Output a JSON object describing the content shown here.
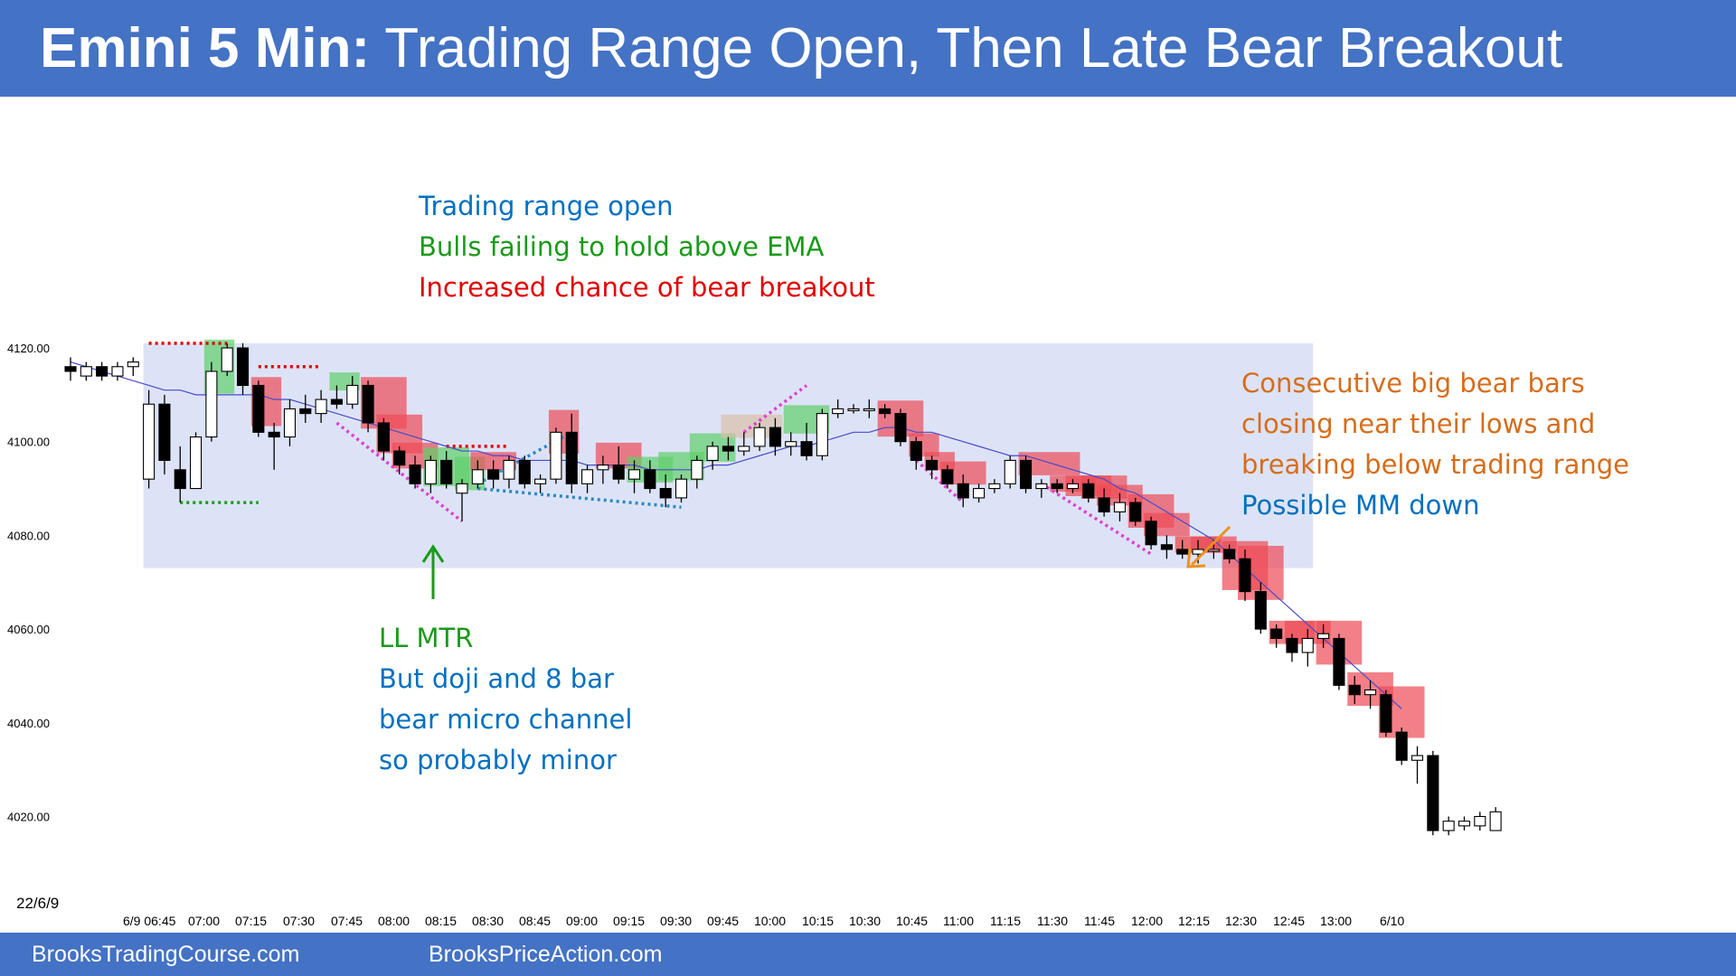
{
  "header": {
    "title_bold": "Emini 5 Min:",
    "title_rest": " Trading Range Open, Then Late Bear Breakout"
  },
  "footer": {
    "link1": "BrooksTradingCourse.com",
    "link2": "BrooksPriceAction.com"
  },
  "colors": {
    "header_bg": "#4472c4",
    "range_box": "#dde3f7",
    "bull_highlight": "#5fcf6a",
    "bear_highlight": "#ee4a55",
    "ema": "#4a4ac8",
    "annotation_blue": "#0070c0",
    "annotation_green": "#1a9a1a",
    "annotation_red": "#e00000",
    "annotation_orange": "#d66d1c"
  },
  "annotations": {
    "top_line1": "Trading range open",
    "top_line2": "Bulls failing to hold above EMA",
    "top_line3": "Increased chance of bear breakout",
    "right_line1": "Consecutive big bear bars",
    "right_line2": "closing near their lows and",
    "right_line3": "breaking below trading range",
    "right_line4": "Possible MM down",
    "bottom_line1": "LL MTR",
    "bottom_line2": "But doji and 8 bar",
    "bottom_line3": "bear micro channel",
    "bottom_line4": "so probably minor"
  },
  "chart_data": {
    "type": "candlestick",
    "date_label": "22/6/9",
    "y_ticks": [
      "4120.00",
      "4100.00",
      "4080.00",
      "4060.00",
      "4040.00",
      "4020.00"
    ],
    "x_ticks": [
      "6/9 06:45",
      "07:00",
      "07:15",
      "07:30",
      "07:45",
      "08:00",
      "08:15",
      "08:30",
      "08:45",
      "09:00",
      "09:15",
      "09:30",
      "09:45",
      "10:00",
      "10:15",
      "10:30",
      "10:45",
      "11:00",
      "11:15",
      "11:30",
      "11:45",
      "12:00",
      "12:15",
      "12:30",
      "12:45",
      "13:00",
      "6/10"
    ],
    "ylim": [
      4013,
      4136
    ],
    "candles": [
      {
        "o": 4116,
        "h": 4118,
        "l": 4113,
        "c": 4115
      },
      {
        "o": 4114,
        "h": 4117,
        "l": 4113,
        "c": 4116
      },
      {
        "o": 4116,
        "h": 4117,
        "l": 4113,
        "c": 4114
      },
      {
        "o": 4114,
        "h": 4117,
        "l": 4113,
        "c": 4116
      },
      {
        "o": 4116,
        "h": 4118,
        "l": 4114,
        "c": 4117
      },
      {
        "o": 4092,
        "h": 4111,
        "l": 4090,
        "c": 4108
      },
      {
        "o": 4108,
        "h": 4110,
        "l": 4093,
        "c": 4096
      },
      {
        "o": 4094,
        "h": 4099,
        "l": 4087,
        "c": 4090
      },
      {
        "o": 4090,
        "h": 4102,
        "l": 4090,
        "c": 4101
      },
      {
        "o": 4101,
        "h": 4117,
        "l": 4100,
        "c": 4115
      },
      {
        "o": 4115,
        "h": 4121,
        "l": 4114,
        "c": 4120
      },
      {
        "o": 4120,
        "h": 4121,
        "l": 4110,
        "c": 4112
      },
      {
        "o": 4112,
        "h": 4113,
        "l": 4101,
        "c": 4102
      },
      {
        "o": 4102,
        "h": 4104,
        "l": 4094,
        "c": 4101
      },
      {
        "o": 4101,
        "h": 4109,
        "l": 4099,
        "c": 4107
      },
      {
        "o": 4107,
        "h": 4110,
        "l": 4104,
        "c": 4106
      },
      {
        "o": 4106,
        "h": 4111,
        "l": 4104,
        "c": 4109
      },
      {
        "o": 4109,
        "h": 4112,
        "l": 4107,
        "c": 4108
      },
      {
        "o": 4108,
        "h": 4114,
        "l": 4107,
        "c": 4112
      },
      {
        "o": 4112,
        "h": 4113,
        "l": 4102,
        "c": 4104
      },
      {
        "o": 4104,
        "h": 4105,
        "l": 4096,
        "c": 4098
      },
      {
        "o": 4098,
        "h": 4099,
        "l": 4093,
        "c": 4095
      },
      {
        "o": 4095,
        "h": 4097,
        "l": 4090,
        "c": 4091
      },
      {
        "o": 4091,
        "h": 4097,
        "l": 4089,
        "c": 4096
      },
      {
        "o": 4096,
        "h": 4098,
        "l": 4090,
        "c": 4091
      },
      {
        "o": 4089,
        "h": 4092,
        "l": 4083,
        "c": 4091
      },
      {
        "o": 4091,
        "h": 4096,
        "l": 4090,
        "c": 4094
      },
      {
        "o": 4094,
        "h": 4096,
        "l": 4090,
        "c": 4092
      },
      {
        "o": 4092,
        "h": 4097,
        "l": 4090,
        "c": 4096
      },
      {
        "o": 4096,
        "h": 4097,
        "l": 4090,
        "c": 4091
      },
      {
        "o": 4091,
        "h": 4093,
        "l": 4089,
        "c": 4092
      },
      {
        "o": 4092,
        "h": 4103,
        "l": 4091,
        "c": 4102
      },
      {
        "o": 4102,
        "h": 4106,
        "l": 4089,
        "c": 4091
      },
      {
        "o": 4091,
        "h": 4095,
        "l": 4089,
        "c": 4094
      },
      {
        "o": 4094,
        "h": 4097,
        "l": 4091,
        "c": 4095
      },
      {
        "o": 4095,
        "h": 4099,
        "l": 4091,
        "c": 4092
      },
      {
        "o": 4092,
        "h": 4096,
        "l": 4089,
        "c": 4094
      },
      {
        "o": 4094,
        "h": 4096,
        "l": 4089,
        "c": 4090
      },
      {
        "o": 4090,
        "h": 4093,
        "l": 4086,
        "c": 4088
      },
      {
        "o": 4088,
        "h": 4093,
        "l": 4087,
        "c": 4092
      },
      {
        "o": 4092,
        "h": 4097,
        "l": 4090,
        "c": 4096
      },
      {
        "o": 4096,
        "h": 4100,
        "l": 4094,
        "c": 4099
      },
      {
        "o": 4099,
        "h": 4101,
        "l": 4096,
        "c": 4098
      },
      {
        "o": 4098,
        "h": 4102,
        "l": 4097,
        "c": 4099
      },
      {
        "o": 4099,
        "h": 4104,
        "l": 4098,
        "c": 4103
      },
      {
        "o": 4103,
        "h": 4105,
        "l": 4097,
        "c": 4099
      },
      {
        "o": 4099,
        "h": 4102,
        "l": 4097,
        "c": 4100
      },
      {
        "o": 4100,
        "h": 4104,
        "l": 4096,
        "c": 4097
      },
      {
        "o": 4097,
        "h": 4107,
        "l": 4096,
        "c": 4106
      },
      {
        "o": 4106,
        "h": 4109,
        "l": 4105,
        "c": 4107
      },
      {
        "o": 4107,
        "h": 4108,
        "l": 4106,
        "c": 4107
      },
      {
        "o": 4107,
        "h": 4109,
        "l": 4105,
        "c": 4107
      },
      {
        "o": 4107,
        "h": 4108,
        "l": 4105,
        "c": 4106
      },
      {
        "o": 4106,
        "h": 4107,
        "l": 4099,
        "c": 4100
      },
      {
        "o": 4100,
        "h": 4101,
        "l": 4094,
        "c": 4096
      },
      {
        "o": 4096,
        "h": 4097,
        "l": 4092,
        "c": 4094
      },
      {
        "o": 4094,
        "h": 4095,
        "l": 4090,
        "c": 4091
      },
      {
        "o": 4091,
        "h": 4093,
        "l": 4086,
        "c": 4088
      },
      {
        "o": 4088,
        "h": 4091,
        "l": 4087,
        "c": 4090
      },
      {
        "o": 4090,
        "h": 4092,
        "l": 4089,
        "c": 4091
      },
      {
        "o": 4091,
        "h": 4097,
        "l": 4090,
        "c": 4096
      },
      {
        "o": 4096,
        "h": 4097,
        "l": 4089,
        "c": 4090
      },
      {
        "o": 4090,
        "h": 4092,
        "l": 4088,
        "c": 4091
      },
      {
        "o": 4091,
        "h": 4092,
        "l": 4089,
        "c": 4090
      },
      {
        "o": 4090,
        "h": 4092,
        "l": 4089,
        "c": 4091
      },
      {
        "o": 4091,
        "h": 4092,
        "l": 4087,
        "c": 4088
      },
      {
        "o": 4088,
        "h": 4090,
        "l": 4084,
        "c": 4085
      },
      {
        "o": 4085,
        "h": 4089,
        "l": 4083,
        "c": 4087
      },
      {
        "o": 4087,
        "h": 4088,
        "l": 4082,
        "c": 4083
      },
      {
        "o": 4083,
        "h": 4084,
        "l": 4077,
        "c": 4078
      },
      {
        "o": 4078,
        "h": 4080,
        "l": 4075,
        "c": 4077
      },
      {
        "o": 4077,
        "h": 4079,
        "l": 4075,
        "c": 4076
      },
      {
        "o": 4076,
        "h": 4079,
        "l": 4074,
        "c": 4077
      },
      {
        "o": 4077,
        "h": 4079,
        "l": 4075,
        "c": 4077
      },
      {
        "o": 4077,
        "h": 4078,
        "l": 4074,
        "c": 4075
      },
      {
        "o": 4075,
        "h": 4077,
        "l": 4066,
        "c": 4068
      },
      {
        "o": 4068,
        "h": 4070,
        "l": 4059,
        "c": 4060
      },
      {
        "o": 4060,
        "h": 4061,
        "l": 4056,
        "c": 4058
      },
      {
        "o": 4058,
        "h": 4059,
        "l": 4053,
        "c": 4055
      },
      {
        "o": 4055,
        "h": 4060,
        "l": 4052,
        "c": 4058
      },
      {
        "o": 4058,
        "h": 4061,
        "l": 4056,
        "c": 4059
      },
      {
        "o": 4058,
        "h": 4059,
        "l": 4047,
        "c": 4048
      },
      {
        "o": 4048,
        "h": 4050,
        "l": 4044,
        "c": 4046
      },
      {
        "o": 4046,
        "h": 4049,
        "l": 4043,
        "c": 4047
      },
      {
        "o": 4046,
        "h": 4047,
        "l": 4037,
        "c": 4038
      },
      {
        "o": 4038,
        "h": 4039,
        "l": 4031,
        "c": 4032
      },
      {
        "o": 4032,
        "h": 4035,
        "l": 4027,
        "c": 4033
      },
      {
        "o": 4033,
        "h": 4034,
        "l": 4016,
        "c": 4017
      },
      {
        "o": 4017,
        "h": 4020,
        "l": 4016,
        "c": 4019
      },
      {
        "o": 4018,
        "h": 4020,
        "l": 4017,
        "c": 4019
      },
      {
        "o": 4018,
        "h": 4021,
        "l": 4017,
        "c": 4020
      },
      {
        "o": 4017,
        "h": 4022,
        "l": 4017,
        "c": 4021
      }
    ],
    "ema": [
      4117,
      4116,
      4115,
      4114,
      4113,
      4112,
      4111,
      4111,
      4110,
      4110,
      4110,
      4110,
      4110,
      4109,
      4109,
      4108,
      4107,
      4106,
      4105,
      4104,
      4103,
      4102,
      4101,
      4100,
      4099,
      4098,
      4098,
      4097,
      4097,
      4096,
      4096,
      4096,
      4096,
      4095,
      4095,
      4095,
      4095,
      4094,
      4094,
      4094,
      4094,
      4095,
      4095,
      4096,
      4097,
      4098,
      4099,
      4099,
      4100,
      4101,
      4102,
      4102,
      4103,
      4103,
      4102,
      4102,
      4101,
      4100,
      4099,
      4098,
      4097,
      4097,
      4096,
      4095,
      4094,
      4093,
      4092,
      4090,
      4089,
      4087,
      4085,
      4083,
      4081,
      4079,
      4076,
      4073,
      4070,
      4067,
      4064,
      4061,
      4058,
      4055,
      4052,
      4049,
      4046,
      4043
    ],
    "range_box": {
      "start": 5,
      "end": 79,
      "top": 4121,
      "bottom": 4073
    }
  }
}
